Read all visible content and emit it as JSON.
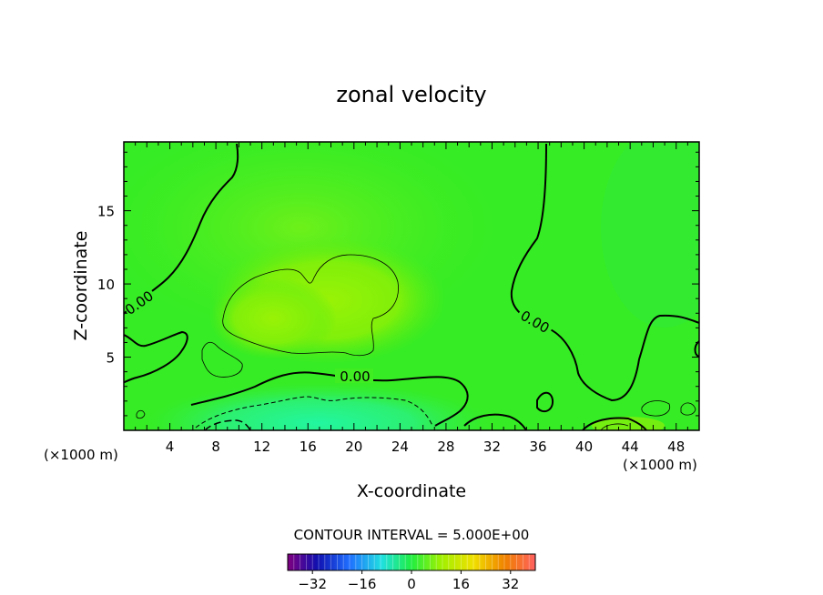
{
  "chart_data": {
    "type": "heatmap",
    "title": "zonal velocity",
    "xlabel": "X-coordinate",
    "ylabel": "Z-coordinate",
    "x_unit_left": "(×1000 m)",
    "x_unit_right": "(×1000 m)",
    "xlim": [
      0,
      50
    ],
    "ylim": [
      0,
      19.7
    ],
    "x_ticks": [
      4,
      8,
      12,
      16,
      20,
      24,
      28,
      32,
      36,
      40,
      44,
      48
    ],
    "x_tick_labels": [
      "4",
      "8",
      "12",
      "16",
      "20",
      "24",
      "28",
      "32",
      "36",
      "40",
      "44",
      "48"
    ],
    "y_ticks": [
      5,
      10,
      15
    ],
    "y_tick_labels": [
      "5",
      "10",
      "15"
    ],
    "contour_interval_text": "CONTOUR INTERVAL = 5.000E+00",
    "contour_labels": [
      {
        "text": "0.00",
        "x": 1.5,
        "z": 8.8,
        "angle": -35
      },
      {
        "text": "0.00",
        "x": 21.5,
        "z": 3.6,
        "angle": 0
      },
      {
        "text": "0.00",
        "x": 35.5,
        "z": 7.5,
        "angle": 30
      }
    ],
    "colorbar": {
      "min": -40,
      "max": 40,
      "ticks": [
        -32,
        -16,
        0,
        16,
        32
      ],
      "tick_labels": [
        "−32",
        "−16",
        "0",
        "16",
        "32"
      ]
    },
    "colors": {
      "background_field": "#33ee22",
      "positive_max_field": "#99ff00",
      "negative_field": "#22ffaa"
    }
  }
}
